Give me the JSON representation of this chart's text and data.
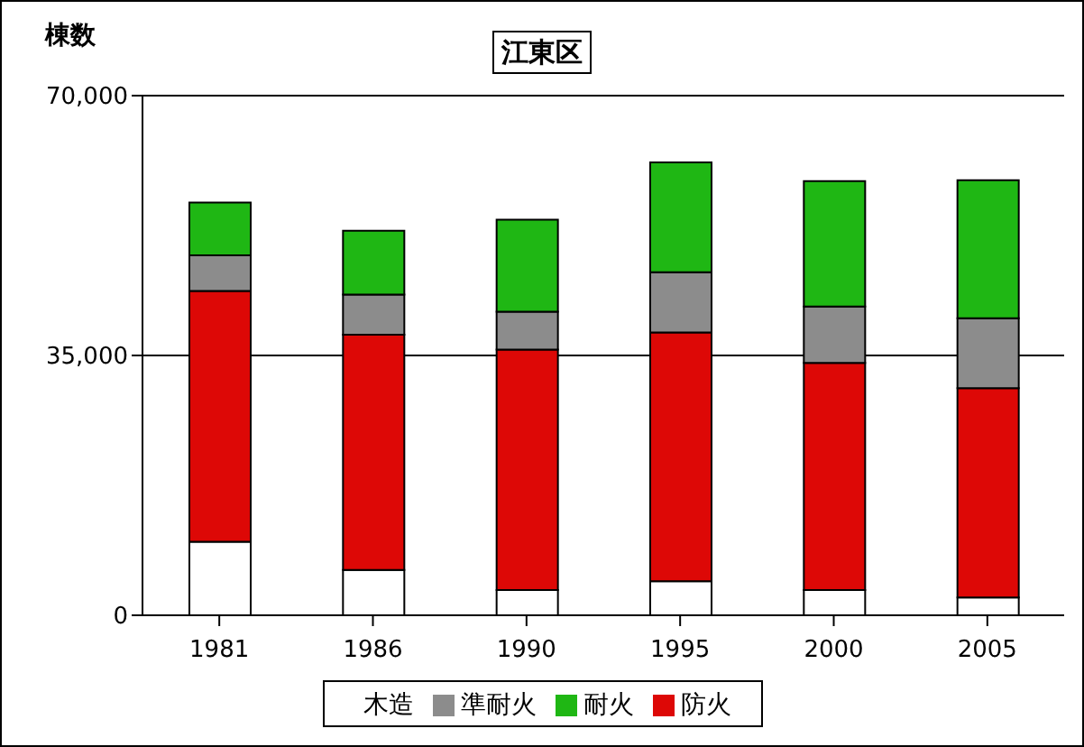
{
  "chart_data": {
    "type": "bar",
    "title": "江東区",
    "ylabel": "棟数",
    "stacked": true,
    "categories": [
      "1981",
      "1986",
      "1990",
      "1995",
      "2000",
      "2005"
    ],
    "series": [
      {
        "name": "木造",
        "color": "#ffffff",
        "values": [
          9900,
          6100,
          3400,
          4600,
          3400,
          2400
        ]
      },
      {
        "name": "防火",
        "color": "#dd0806",
        "values": [
          33800,
          31700,
          32400,
          33500,
          30600,
          28200
        ]
      },
      {
        "name": "準耐火",
        "color": "#8c8c8c",
        "values": [
          4800,
          5400,
          5100,
          8100,
          7600,
          9400
        ]
      },
      {
        "name": "耐火",
        "color": "#1fb714",
        "values": [
          7100,
          8600,
          12400,
          14800,
          16900,
          18600
        ]
      }
    ],
    "ylim": [
      0,
      70000
    ],
    "yticks": [
      0,
      {
        "value": 35000,
        "label": "35,000"
      },
      {
        "value": 70000,
        "label": "70,000"
      }
    ],
    "grid": "y",
    "legend": "bottom"
  }
}
